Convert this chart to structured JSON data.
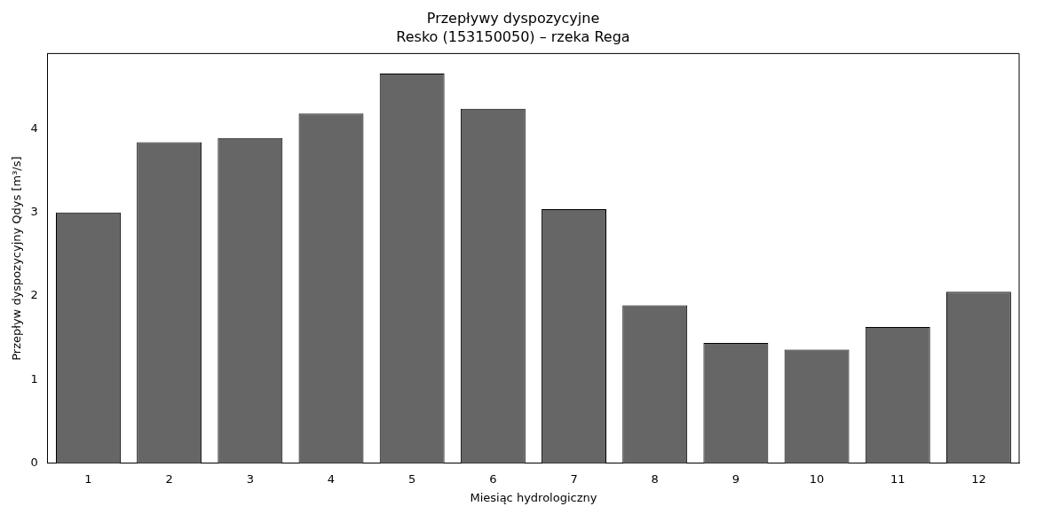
{
  "chart_data": {
    "type": "bar",
    "title": "Przepływy dyspozycyjne",
    "subtitle": "Resko (153150050) – rzeka Rega",
    "xlabel": "Miesiąc hydrologiczny",
    "ylabel": "Przepływ dyspozycyjny Qdys [m³/s]",
    "categories": [
      "1",
      "2",
      "3",
      "4",
      "5",
      "6",
      "7",
      "8",
      "9",
      "10",
      "11",
      "12"
    ],
    "values": [
      3.0,
      3.84,
      3.89,
      4.18,
      4.66,
      4.24,
      3.04,
      1.89,
      1.44,
      1.36,
      1.63,
      2.05
    ],
    "color": "#666666",
    "ylim": [
      0,
      4.9
    ],
    "yticks": [
      0,
      1,
      2,
      3,
      4
    ],
    "grid": false
  }
}
